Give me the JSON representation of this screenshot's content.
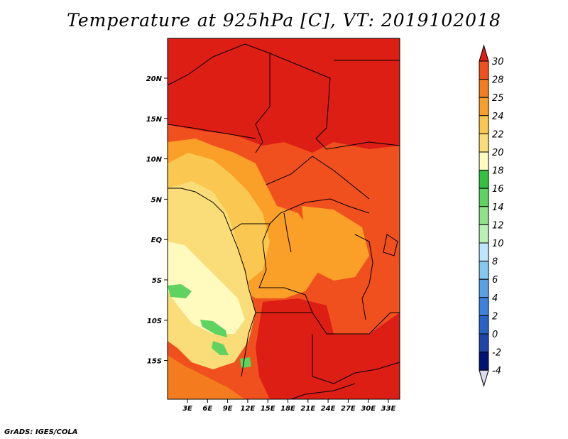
{
  "title": "Temperature at 925hPa [C], VT: 2019102018",
  "credit": "GrADS: IGES/COLA",
  "lat_ticks": [
    "20N",
    "15N",
    "10N",
    "5N",
    "EQ",
    "5S",
    "10S",
    "15S"
  ],
  "lon_ticks": [
    "3E",
    "6E",
    "9E",
    "12E",
    "15E",
    "18E",
    "21E",
    "24E",
    "27E",
    "30E",
    "33E"
  ],
  "colorbar": {
    "labels": [
      "30",
      "28",
      "25",
      "24",
      "22",
      "20",
      "18",
      "16",
      "14",
      "12",
      "10",
      "8",
      "6",
      "4",
      "2",
      "0",
      "-2",
      "-4"
    ],
    "colors": [
      "#dc1e14",
      "#f0501e",
      "#f57c1e",
      "#faa028",
      "#fac850",
      "#fadc78",
      "#fffabe",
      "#33c13f",
      "#5fd35f",
      "#8fe28c",
      "#b9f0b4",
      "#bee6fa",
      "#82c8f0",
      "#5aa0e6",
      "#3c82dc",
      "#2864c8",
      "#1e46aa",
      "#001478",
      "#0a0a50"
    ]
  },
  "fields": {
    "hot": "#dc1e14",
    "warm": "#f0501e",
    "mid": "#f57c1e",
    "mild": "#faa028",
    "cool": "#fac850",
    "cooler": "#fadc78",
    "coolest": "#fffabe",
    "green": "#5fd35f"
  }
}
